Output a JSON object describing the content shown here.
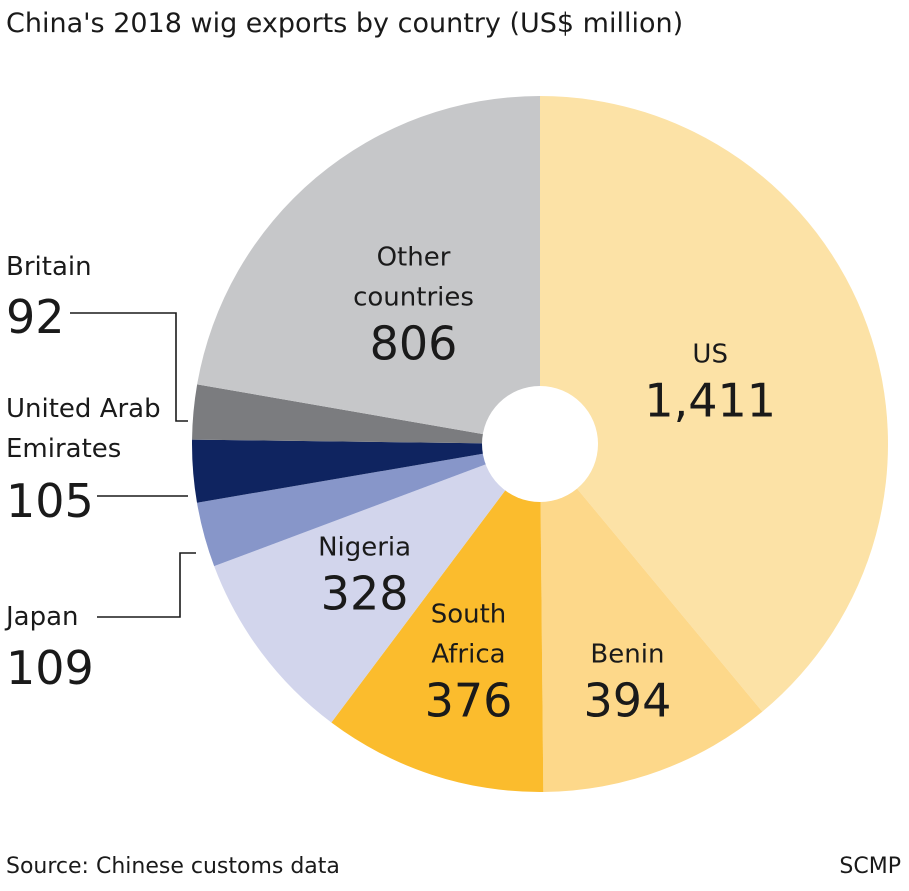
{
  "title": "China's 2018 wig exports by country (US$ million)",
  "source": "Source: Chinese customs data",
  "credit": "SCMP",
  "chart_data": {
    "type": "pie",
    "title": "China's 2018 wig exports by country (US$ million)",
    "unit": "US$ million",
    "slices": [
      {
        "label": "US",
        "label_lines": [
          "US"
        ],
        "value": 1411,
        "value_text": "1,411",
        "color": "#fce2a6",
        "label_pos": "inside"
      },
      {
        "label": "Benin",
        "label_lines": [
          "Benin"
        ],
        "value": 394,
        "value_text": "394",
        "color": "#fdd88a",
        "label_pos": "inside"
      },
      {
        "label": "South Africa",
        "label_lines": [
          "South",
          "Africa"
        ],
        "value": 376,
        "value_text": "376",
        "color": "#fbbc2d",
        "label_pos": "inside"
      },
      {
        "label": "Nigeria",
        "label_lines": [
          "Nigeria"
        ],
        "value": 328,
        "value_text": "328",
        "color": "#d2d5ec",
        "label_pos": "inside"
      },
      {
        "label": "Japan",
        "label_lines": [
          "Japan"
        ],
        "value": 109,
        "value_text": "109",
        "color": "#8796c9",
        "label_pos": "outside"
      },
      {
        "label": "United Arab Emirates",
        "label_lines": [
          "United Arab",
          "Emirates"
        ],
        "value": 105,
        "value_text": "105",
        "color": "#0f2460",
        "label_pos": "outside"
      },
      {
        "label": "Britain",
        "label_lines": [
          "Britain"
        ],
        "value": 92,
        "value_text": "92",
        "color": "#7b7c7f",
        "label_pos": "outside"
      },
      {
        "label": "Other countries",
        "label_lines": [
          "Other",
          "countries"
        ],
        "value": 806,
        "value_text": "806",
        "color": "#c6c7c9",
        "label_pos": "inside"
      }
    ]
  }
}
